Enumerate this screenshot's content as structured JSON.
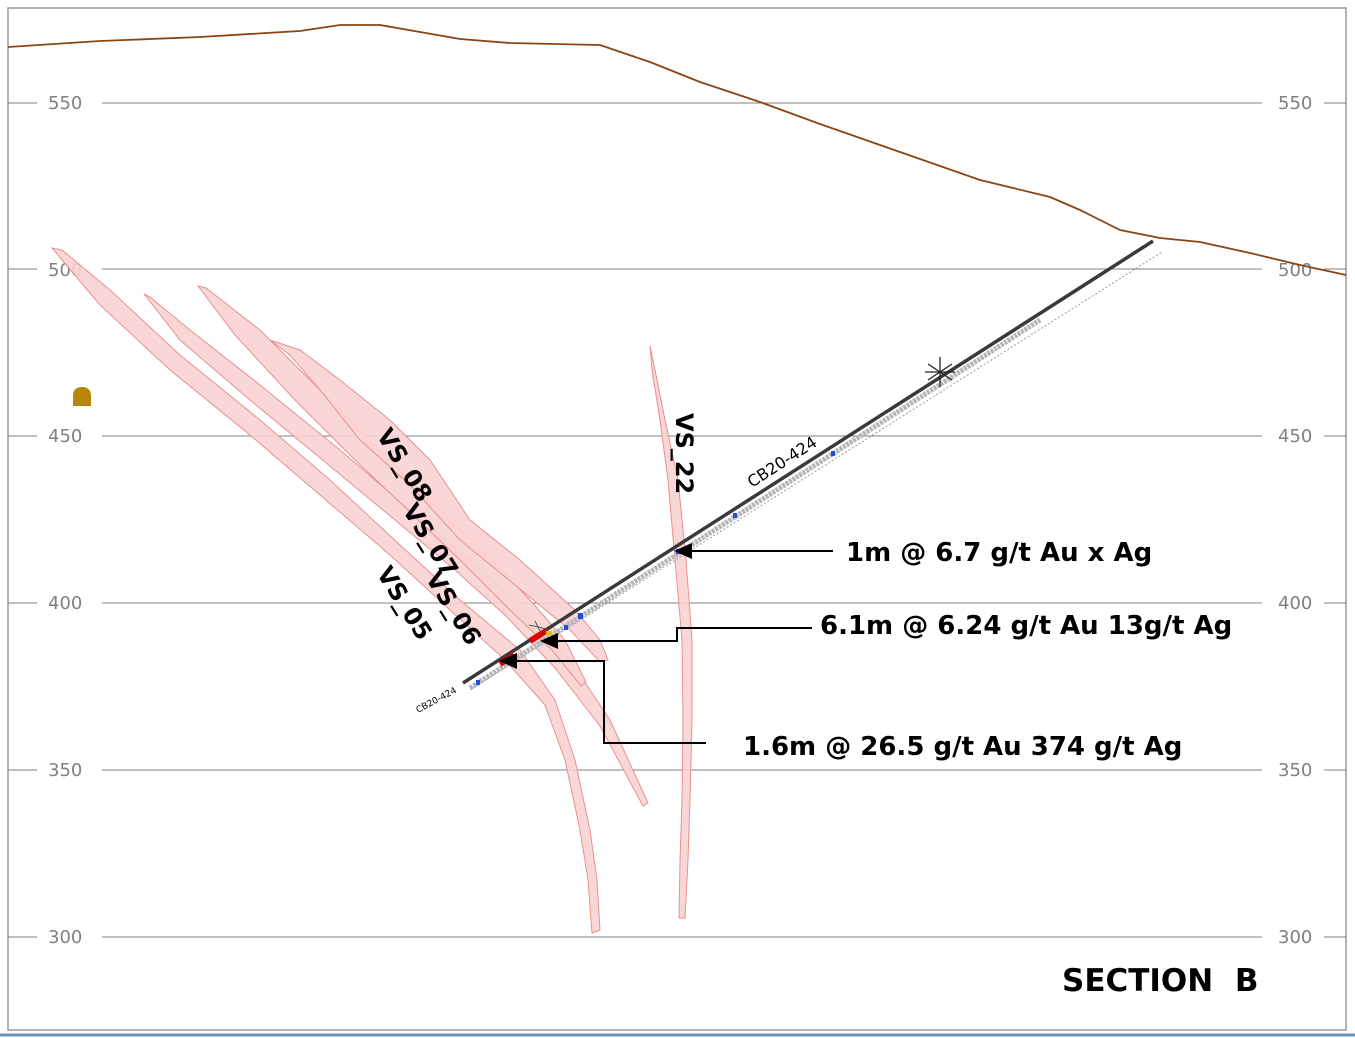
{
  "section_title": "SECTION  B",
  "elevations": [
    "550",
    "500",
    "450",
    "400",
    "350",
    "300"
  ],
  "veins": {
    "vs_08": "VS_08",
    "vs_07": "VS_07",
    "vs_06": "VS_06",
    "vs_05": "VS_05",
    "vs_22": "VS_22"
  },
  "drillhole": {
    "name": "CB20-424",
    "collar_label": "CB20-424"
  },
  "intercepts": [
    "1m @ 6.7 g/t Au x Ag",
    "6.1m @ 6.24 g/t Au 13g/t Ag",
    "1.6m @ 26.5 g/t Au 374 g/t Ag"
  ],
  "colors": {
    "topography": "#8B4513",
    "vein_fill": "#F9D3D3",
    "vein_stroke": "#E89090",
    "gridline": "#808080",
    "drillhole": "#3a3a3a",
    "high_grade": "#E00000",
    "adit_marker": "#B8860B"
  }
}
